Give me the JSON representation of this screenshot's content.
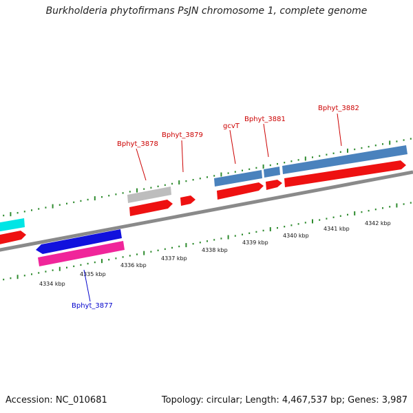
{
  "title": "Burkholderia phytofirmans PsJN chromosome 1, complete genome",
  "footer": {
    "accession": "Accession: NC_010681",
    "summary": "Topology: circular; Length: 4,467,537 bp; Genes: 3,987"
  },
  "colors": {
    "backbone": "#8a8a8a",
    "tick": "#2e8b2e",
    "cds": "#ee1111",
    "gene_steel": "#4a82bd",
    "gene_gray": "#bdbdbd",
    "gene_cyan": "#00e5e5",
    "gene_blue": "#1111dd",
    "gene_pink": "#f0259a",
    "label_forward": "#cc0000",
    "label_reverse": "#0000cc"
  },
  "ruler_labels": [
    "4334 kbp",
    "4335 kbp",
    "4336 kbp",
    "4337 kbp",
    "4338 kbp",
    "4339 kbp",
    "4340 kbp",
    "4341 kbp",
    "4342 kbp"
  ],
  "gene_labels": {
    "bphyt_3878": "Bphyt_3878",
    "bphyt_3879": "Bphyt_3879",
    "gcvt": "gcvT",
    "bphyt_3881": "Bphyt_3881",
    "bphyt_3882": "Bphyt_3882",
    "bphyt_3877": "Bphyt_3877"
  }
}
